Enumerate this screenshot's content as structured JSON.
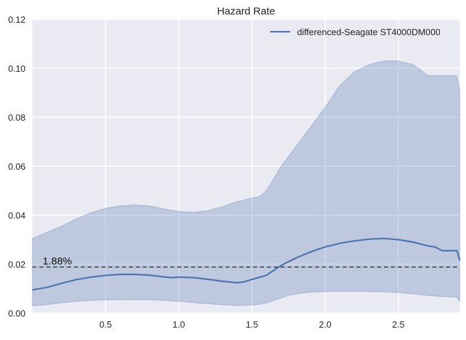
{
  "chart_data": {
    "type": "line",
    "title": "Hazard Rate",
    "xlabel": "",
    "ylabel": "",
    "xlim": [
      0,
      2.92
    ],
    "ylim": [
      0,
      0.12
    ],
    "x_ticks": [
      0.5,
      1.0,
      1.5,
      2.0,
      2.5
    ],
    "x_tick_labels": [
      "0.5",
      "1.0",
      "1.5",
      "2.0",
      "2.5"
    ],
    "y_ticks": [
      0.0,
      0.02,
      0.04,
      0.06,
      0.08,
      0.1,
      0.12
    ],
    "y_tick_labels": [
      "0.00",
      "0.02",
      "0.04",
      "0.06",
      "0.08",
      "0.10",
      "0.12"
    ],
    "grid": true,
    "legend": {
      "position": "top-right"
    },
    "colors": {
      "series": "#4c72b0",
      "band": "#4c72b0",
      "background": "#eaeaf2",
      "grid": "#ffffff",
      "reference": "#222222"
    },
    "series": [
      {
        "name": "differenced-Seagate ST4000DM000",
        "x": [
          0.0,
          0.1,
          0.2,
          0.3,
          0.4,
          0.5,
          0.6,
          0.7,
          0.8,
          0.9,
          0.95,
          1.0,
          1.1,
          1.2,
          1.3,
          1.4,
          1.45,
          1.5,
          1.55,
          1.6,
          1.65,
          1.7,
          1.75,
          1.8,
          1.9,
          2.0,
          2.1,
          2.2,
          2.3,
          2.4,
          2.5,
          2.6,
          2.7,
          2.75,
          2.8,
          2.9,
          2.92
        ],
        "y": [
          0.0095,
          0.0105,
          0.0122,
          0.0137,
          0.0147,
          0.0154,
          0.0158,
          0.0158,
          0.0155,
          0.0148,
          0.0145,
          0.0147,
          0.0145,
          0.0138,
          0.013,
          0.0124,
          0.0128,
          0.0138,
          0.0146,
          0.0155,
          0.0175,
          0.0195,
          0.021,
          0.0225,
          0.025,
          0.027,
          0.0285,
          0.0295,
          0.0302,
          0.0305,
          0.03,
          0.029,
          0.0275,
          0.027,
          0.0255,
          0.0255,
          0.0215
        ]
      }
    ],
    "confidence_band": {
      "x": [
        0.0,
        0.1,
        0.2,
        0.3,
        0.4,
        0.5,
        0.6,
        0.7,
        0.8,
        0.9,
        1.0,
        1.1,
        1.2,
        1.3,
        1.4,
        1.5,
        1.55,
        1.6,
        1.65,
        1.7,
        1.75,
        1.8,
        1.85,
        1.9,
        2.0,
        2.1,
        2.2,
        2.3,
        2.4,
        2.5,
        2.6,
        2.65,
        2.7,
        2.8,
        2.9,
        2.92
      ],
      "upper": [
        0.0305,
        0.033,
        0.0355,
        0.0385,
        0.041,
        0.0428,
        0.0438,
        0.0442,
        0.0438,
        0.0425,
        0.0415,
        0.0412,
        0.0418,
        0.0435,
        0.0455,
        0.047,
        0.0475,
        0.05,
        0.055,
        0.06,
        0.064,
        0.068,
        0.072,
        0.076,
        0.084,
        0.093,
        0.0985,
        0.1015,
        0.103,
        0.103,
        0.1015,
        0.0995,
        0.097,
        0.097,
        0.097,
        0.091
      ],
      "lower": [
        0.003,
        0.0035,
        0.0042,
        0.0048,
        0.0052,
        0.0054,
        0.0055,
        0.0055,
        0.0054,
        0.0052,
        0.0048,
        0.0043,
        0.0038,
        0.0034,
        0.0031,
        0.0033,
        0.0036,
        0.0042,
        0.0052,
        0.0062,
        0.0072,
        0.0078,
        0.0082,
        0.0085,
        0.0088,
        0.0089,
        0.0089,
        0.0088,
        0.0087,
        0.0084,
        0.0079,
        0.0075,
        0.0072,
        0.0068,
        0.0065,
        0.0048
      ]
    },
    "reference_line": {
      "y": 0.0188,
      "label": "1.88%"
    }
  }
}
